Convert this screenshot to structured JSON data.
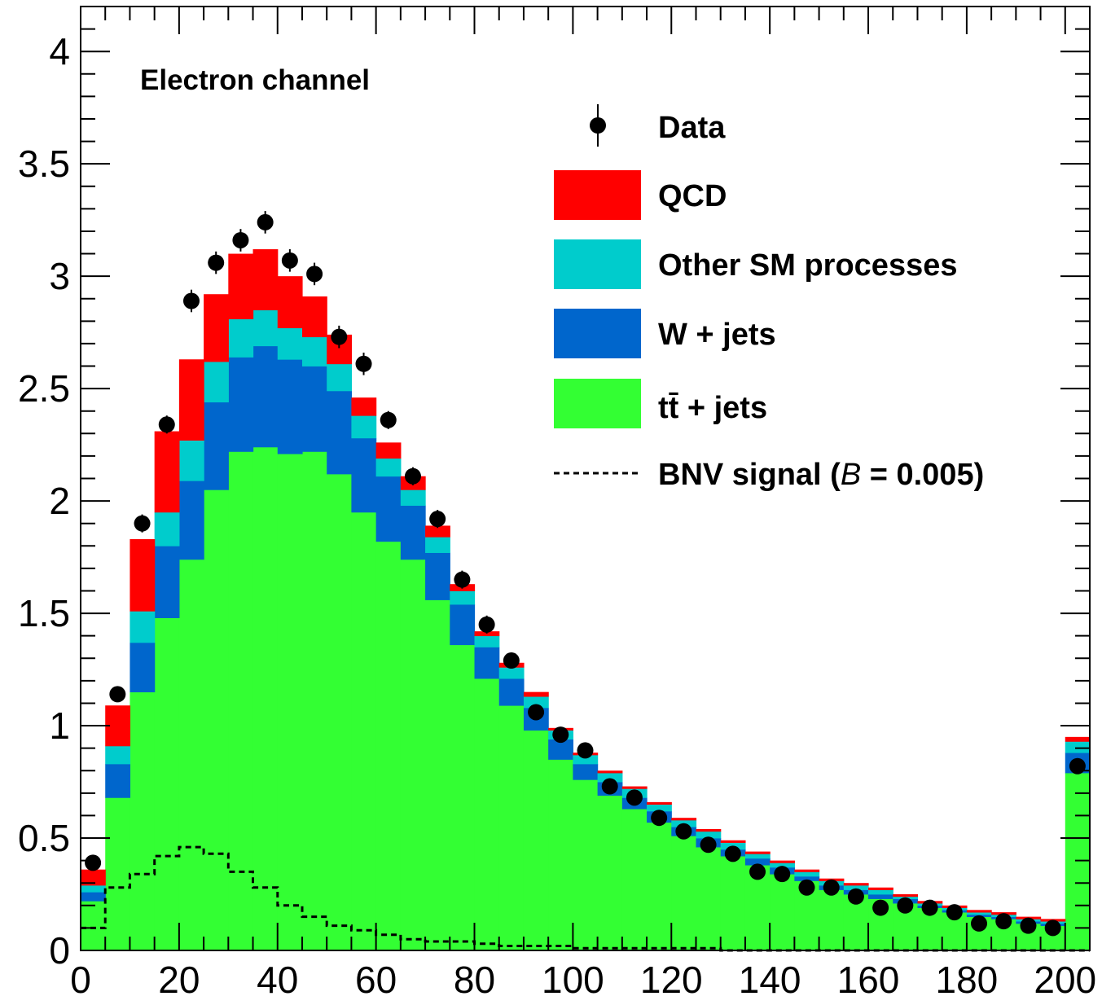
{
  "chart_data": {
    "type": "bar",
    "subtype": "stacked-histogram",
    "title": "",
    "xlabel": "",
    "ylabel": "",
    "channel_label": "Electron channel",
    "xlim": [
      0,
      205
    ],
    "ylim": [
      0,
      4.2
    ],
    "x_ticks": [
      "0",
      "20",
      "40",
      "60",
      "80",
      "100",
      "120",
      "140",
      "160",
      "180",
      "200"
    ],
    "y_ticks": [
      "0",
      "0.5",
      "1",
      "1.5",
      "2",
      "2.5",
      "3",
      "3.5",
      "4"
    ],
    "bin_edges": [
      0,
      5,
      10,
      15,
      20,
      25,
      30,
      35,
      40,
      45,
      50,
      55,
      60,
      65,
      70,
      75,
      80,
      85,
      90,
      95,
      100,
      105,
      110,
      115,
      120,
      125,
      130,
      135,
      140,
      145,
      150,
      155,
      160,
      165,
      170,
      175,
      180,
      185,
      190,
      195,
      200,
      205
    ],
    "series": [
      {
        "name": "tt̄ + jets",
        "color": "#33ff33",
        "values": [
          0.22,
          0.68,
          1.15,
          1.48,
          1.74,
          2.05,
          2.22,
          2.24,
          2.21,
          2.22,
          2.12,
          1.95,
          1.82,
          1.74,
          1.56,
          1.36,
          1.21,
          1.09,
          0.98,
          0.85,
          0.76,
          0.69,
          0.63,
          0.57,
          0.51,
          0.46,
          0.42,
          0.38,
          0.34,
          0.31,
          0.27,
          0.25,
          0.23,
          0.21,
          0.19,
          0.17,
          0.15,
          0.14,
          0.12,
          0.11,
          0.79
        ]
      },
      {
        "name": "W + jets",
        "color": "#0066cc",
        "values": [
          0.04,
          0.15,
          0.22,
          0.32,
          0.35,
          0.39,
          0.42,
          0.45,
          0.42,
          0.38,
          0.37,
          0.33,
          0.29,
          0.24,
          0.21,
          0.18,
          0.14,
          0.12,
          0.1,
          0.09,
          0.07,
          0.06,
          0.05,
          0.05,
          0.04,
          0.04,
          0.03,
          0.03,
          0.03,
          0.02,
          0.02,
          0.02,
          0.02,
          0.02,
          0.01,
          0.01,
          0.01,
          0.01,
          0.01,
          0.01,
          0.09
        ]
      },
      {
        "name": "Other SM processes",
        "color": "#00cccc",
        "values": [
          0.03,
          0.08,
          0.14,
          0.15,
          0.18,
          0.18,
          0.17,
          0.16,
          0.14,
          0.13,
          0.12,
          0.1,
          0.08,
          0.07,
          0.07,
          0.06,
          0.05,
          0.05,
          0.05,
          0.04,
          0.04,
          0.04,
          0.04,
          0.03,
          0.03,
          0.03,
          0.03,
          0.02,
          0.02,
          0.02,
          0.02,
          0.02,
          0.02,
          0.01,
          0.01,
          0.01,
          0.01,
          0.01,
          0.01,
          0.01,
          0.05
        ]
      },
      {
        "name": "QCD",
        "color": "#ff0000",
        "values": [
          0.07,
          0.18,
          0.32,
          0.36,
          0.36,
          0.3,
          0.29,
          0.27,
          0.23,
          0.18,
          0.13,
          0.08,
          0.07,
          0.06,
          0.05,
          0.03,
          0.02,
          0.02,
          0.02,
          0.01,
          0.01,
          0.01,
          0.01,
          0.01,
          0.01,
          0.01,
          0.01,
          0.01,
          0.01,
          0.01,
          0.01,
          0.01,
          0.01,
          0.01,
          0.01,
          0.01,
          0.01,
          0.01,
          0.01,
          0.01,
          0.02
        ]
      }
    ],
    "data_points": {
      "name": "Data",
      "color": "#000000",
      "x": [
        2.5,
        7.5,
        12.5,
        17.5,
        22.5,
        27.5,
        32.5,
        37.5,
        42.5,
        47.5,
        52.5,
        57.5,
        62.5,
        67.5,
        72.5,
        77.5,
        82.5,
        87.5,
        92.5,
        97.5,
        102.5,
        107.5,
        112.5,
        117.5,
        122.5,
        127.5,
        132.5,
        137.5,
        142.5,
        147.5,
        152.5,
        157.5,
        162.5,
        167.5,
        172.5,
        177.5,
        182.5,
        187.5,
        192.5,
        197.5,
        202.5
      ],
      "y": [
        0.39,
        1.14,
        1.9,
        2.34,
        2.89,
        3.06,
        3.16,
        3.24,
        3.07,
        3.01,
        2.73,
        2.61,
        2.36,
        2.11,
        1.92,
        1.65,
        1.45,
        1.29,
        1.06,
        0.96,
        0.89,
        0.73,
        0.68,
        0.59,
        0.53,
        0.47,
        0.43,
        0.35,
        0.34,
        0.28,
        0.28,
        0.24,
        0.19,
        0.2,
        0.19,
        0.17,
        0.12,
        0.13,
        0.11,
        0.1,
        0.82
      ],
      "yerr": [
        0.03,
        0.03,
        0.04,
        0.04,
        0.05,
        0.05,
        0.05,
        0.05,
        0.05,
        0.05,
        0.05,
        0.05,
        0.04,
        0.04,
        0.04,
        0.04,
        0.04,
        0.03,
        0.03,
        0.03,
        0.03,
        0.03,
        0.03,
        0.02,
        0.02,
        0.02,
        0.02,
        0.02,
        0.02,
        0.02,
        0.02,
        0.02,
        0.02,
        0.02,
        0.02,
        0.02,
        0.01,
        0.01,
        0.01,
        0.01,
        0.03
      ]
    },
    "signal": {
      "name": "BNV signal",
      "label_prefix": "BNV signal (",
      "label_symbol": "B",
      "label_suffix": " = 0.005)",
      "style": "dashed",
      "color": "#000000",
      "values": [
        0.1,
        0.28,
        0.34,
        0.42,
        0.46,
        0.43,
        0.35,
        0.28,
        0.2,
        0.15,
        0.11,
        0.09,
        0.07,
        0.05,
        0.04,
        0.04,
        0.03,
        0.02,
        0.02,
        0.02,
        0.01,
        0.01,
        0.01,
        0.01,
        0.01,
        0.01,
        0.0,
        0.0,
        0.0,
        0.0,
        0.0,
        0.0,
        0.0,
        0.0,
        0.0,
        0.0,
        0.0,
        0.0,
        0.0,
        0.0,
        0.0
      ]
    },
    "legend": {
      "placement": "top-right",
      "entries": [
        {
          "label": "Data",
          "kind": "marker"
        },
        {
          "label": "QCD",
          "kind": "fill",
          "color": "#ff0000"
        },
        {
          "label": "Other SM processes",
          "kind": "fill",
          "color": "#00cccc"
        },
        {
          "label": "W + jets",
          "kind": "fill",
          "color": "#0066cc"
        },
        {
          "label": "tt̄ + jets",
          "kind": "fill",
          "color": "#33ff33"
        },
        {
          "label": "BNV signal",
          "kind": "dashed"
        }
      ]
    },
    "grid": false
  }
}
